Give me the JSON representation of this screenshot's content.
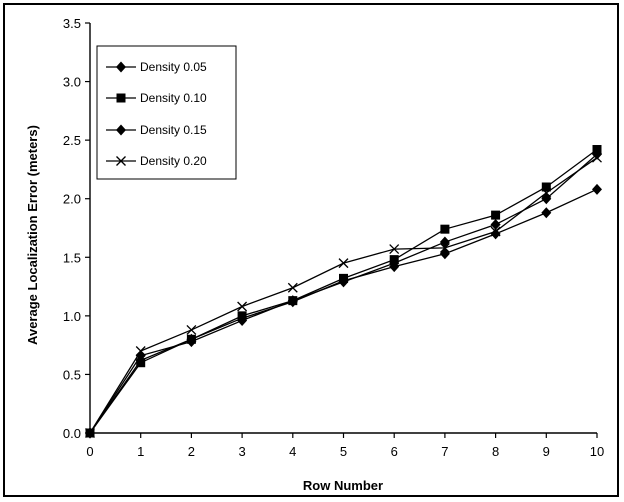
{
  "chart_data": {
    "type": "line",
    "title": "",
    "xlabel": "Row Number",
    "ylabel": "Average Localization Error  (meters)",
    "x": [
      0,
      1,
      2,
      3,
      4,
      5,
      6,
      7,
      8,
      9,
      10
    ],
    "xlim": [
      0,
      10
    ],
    "ylim": [
      0,
      3.5
    ],
    "xticks": [
      "0",
      "1",
      "2",
      "3",
      "4",
      "5",
      "6",
      "7",
      "8",
      "9",
      "10"
    ],
    "yticks": [
      "0.0",
      "0.5",
      "1.0",
      "1.5",
      "2.0",
      "2.5",
      "3.0",
      "3.5"
    ],
    "grid": false,
    "legend_position": "top-left",
    "series": [
      {
        "name": "Density 0.05",
        "marker": "diamond",
        "values": [
          0.0,
          0.62,
          0.8,
          0.98,
          1.12,
          1.3,
          1.42,
          1.53,
          1.7,
          1.88,
          2.08
        ]
      },
      {
        "name": "Density 0.10",
        "marker": "square",
        "values": [
          0.0,
          0.6,
          0.8,
          1.0,
          1.13,
          1.32,
          1.48,
          1.74,
          1.86,
          2.1,
          2.42
        ]
      },
      {
        "name": "Density 0.15",
        "marker": "diamond",
        "values": [
          0.0,
          0.66,
          0.78,
          0.96,
          1.13,
          1.29,
          1.45,
          1.63,
          1.78,
          2.0,
          2.38
        ]
      },
      {
        "name": "Density 0.20",
        "marker": "cross",
        "values": [
          0.0,
          0.7,
          0.88,
          1.08,
          1.24,
          1.45,
          1.57,
          1.58,
          1.72,
          2.05,
          2.35
        ]
      }
    ]
  }
}
